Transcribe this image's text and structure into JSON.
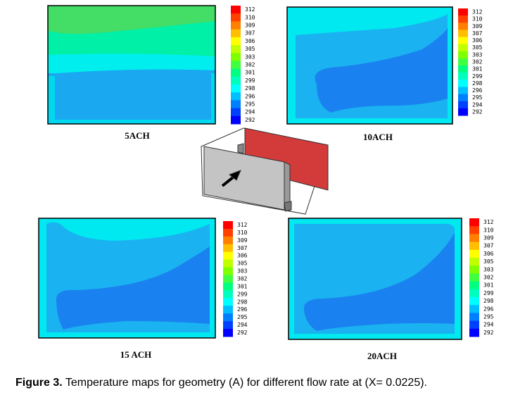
{
  "panels": [
    {
      "label": "5ACH"
    },
    {
      "label": "10ACH"
    },
    {
      "label": "15 ACH"
    },
    {
      "label": "20ACH"
    }
  ],
  "colorbar": [
    "312",
    "310",
    "309",
    "307",
    "306",
    "305",
    "303",
    "302",
    "301",
    "299",
    "298",
    "296",
    "295",
    "294",
    "292"
  ],
  "caption": {
    "label": "Figure 3.",
    "text": "Temperature maps for geometry (A) for different flow rate at (X= 0.0225)."
  }
}
